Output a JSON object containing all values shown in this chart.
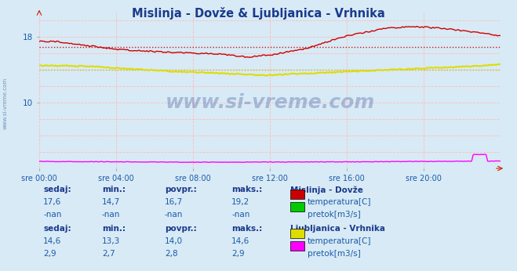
{
  "title": "Mislinja - Dovže & Ljubljanica - Vrhnika",
  "title_color": "#1a3a8c",
  "bg_color": "#d8eaf5",
  "plot_bg_color": "#d8eaf5",
  "grid_color": "#ffbbbb",
  "xlabel_color": "#1a5aaa",
  "ylabel_color": "#1a5aaa",
  "xlabels": [
    "sre 00:00",
    "sre 04:00",
    "sre 08:00",
    "sre 12:00",
    "sre 16:00",
    "sre 20:00"
  ],
  "ylim": [
    2,
    21
  ],
  "yticks": [
    10,
    18
  ],
  "n_points": 288,
  "watermark": "www.si-vreme.com",
  "legend1_title": "Mislinja - Dovže",
  "legend1_color1": "#cc0000",
  "legend1_label1": "temperatura[C]",
  "legend1_color2": "#00cc00",
  "legend1_label2": "pretok[m3/s]",
  "legend2_title": "Ljubljanica - Vrhnika",
  "legend2_color1": "#dddd00",
  "legend2_label1": "temperatura[C]",
  "legend2_color2": "#ff00ff",
  "legend2_label2": "pretok[m3/s]",
  "stat1_headers": [
    "sedaj:",
    "min.:",
    "povpr.:",
    "maks.:"
  ],
  "stat1_row1": [
    "17,6",
    "14,7",
    "16,7",
    "19,2"
  ],
  "stat1_row2": [
    "-nan",
    "-nan",
    "-nan",
    "-nan"
  ],
  "stat2_row1": [
    "14,6",
    "13,3",
    "14,0",
    "14,6"
  ],
  "stat2_row2": [
    "2,9",
    "2,7",
    "2,8",
    "2,9"
  ],
  "mislinja_avg_line": 16.7,
  "ljubljanica_avg_line": 14.0,
  "header_color": "#1a3a8c",
  "val_color": "#1a5aaa",
  "label_color": "#1a5aaa"
}
